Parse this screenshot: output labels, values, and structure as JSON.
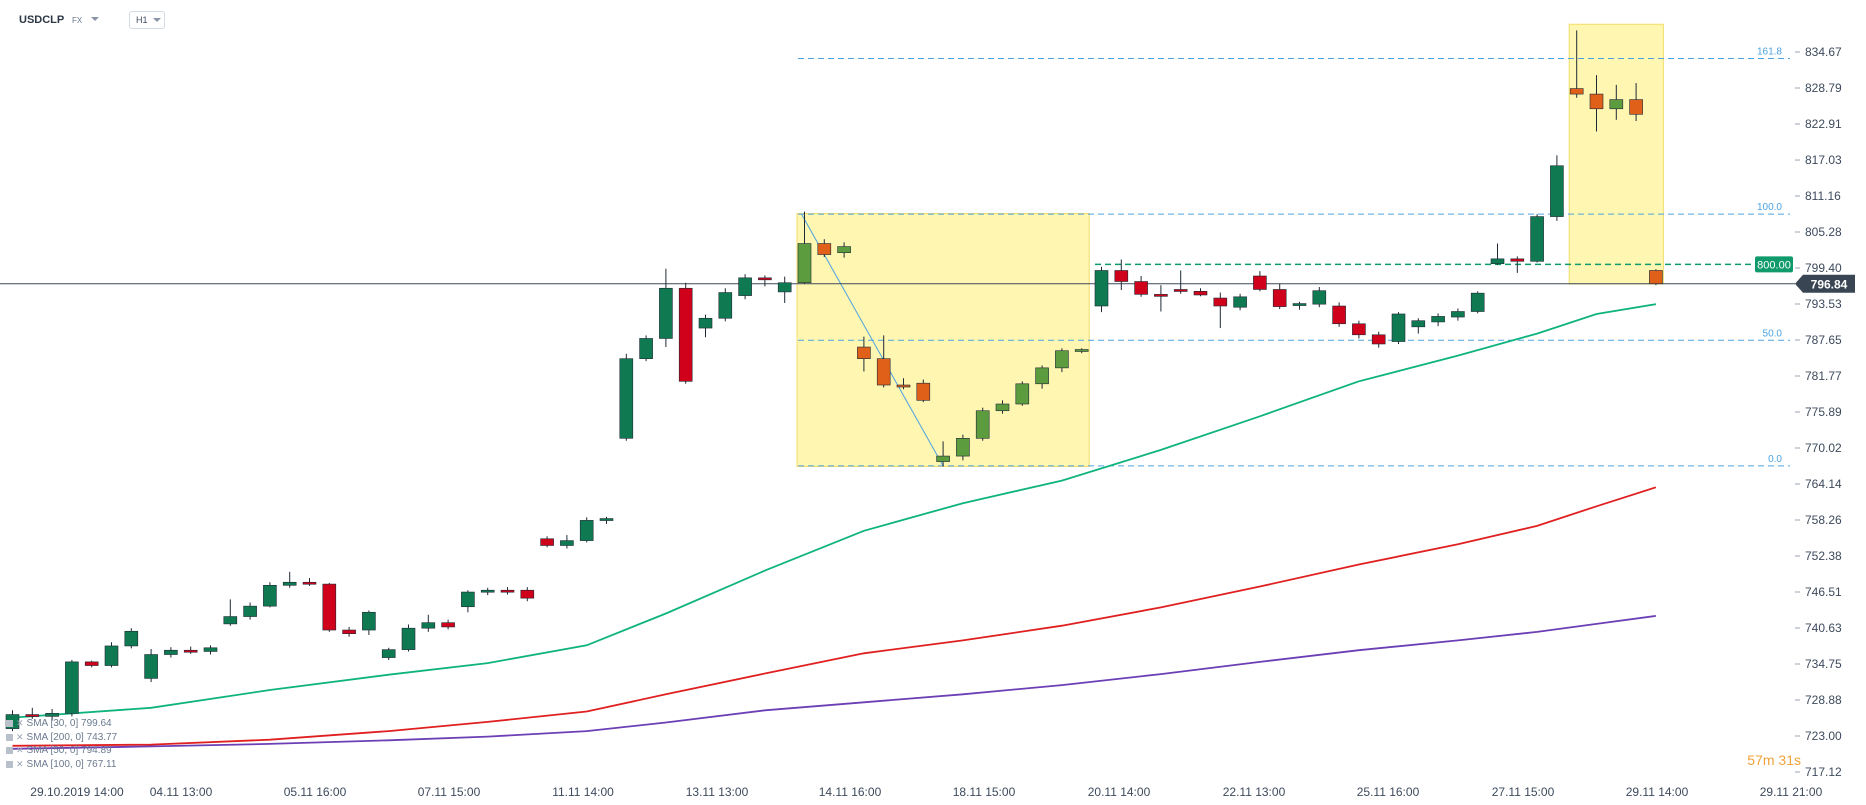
{
  "header": {
    "symbol": "USDCLP",
    "market": "FX",
    "timeframe": "H1"
  },
  "legend": [
    {
      "label": "SMA [30, 0] 799.64",
      "color": "#0fb37e"
    },
    {
      "label": "SMA [200, 0] 743.77",
      "color": "#6c3fb5"
    },
    {
      "label": "SMA [50, 0] 794.89",
      "color": "#0fb37e"
    },
    {
      "label": "SMA [100, 0] 767.11",
      "color": "#e02020"
    }
  ],
  "timer": "57m 31s",
  "colors": {
    "up": "#0f7a52",
    "down": "#d0021b",
    "fib_up": "#5d9c3e",
    "fib_down": "#e0601a",
    "sma_green": "#0fb37e",
    "sma_red": "#e02020",
    "sma_purple": "#6c3fb5",
    "fib_line": "#4da3e0",
    "highlight": "#fff5a8"
  },
  "chart_data": {
    "type": "candlestick",
    "symbol": "USDCLP",
    "y_range": [
      714.5,
      839.2
    ],
    "y_ticks": [
      834.67,
      828.79,
      822.91,
      817.03,
      811.16,
      805.28,
      799.4,
      793.53,
      787.65,
      781.77,
      775.89,
      770.02,
      764.14,
      758.26,
      752.38,
      746.51,
      740.63,
      734.75,
      728.88,
      723.0,
      717.12
    ],
    "x_ticks": [
      "29.10.2019  14:00",
      "04.11  13:00",
      "05.11  16:00",
      "07.11  15:00",
      "11.11  14:00",
      "13.11  13:00",
      "14.11  16:00",
      "18.11  15:00",
      "20.11  14:00",
      "22.11  13:00",
      "25.11  16:00",
      "27.11  15:00",
      "29.11  14:00",
      "29.11  21:00"
    ],
    "current_price": "796.84",
    "level_label": "800.00",
    "fib_levels": [
      {
        "label": "161.8",
        "value": 833.6
      },
      {
        "label": "100.0",
        "value": 808.2
      },
      {
        "label": "50.0",
        "value": 787.6
      },
      {
        "label": "0.0",
        "value": 767.1
      }
    ],
    "candles": [
      {
        "i": 0,
        "o": 724.2,
        "h": 727.2,
        "l": 723.8,
        "c": 726.5
      },
      {
        "i": 1,
        "o": 726.5,
        "h": 727.6,
        "l": 725.8,
        "c": 726.2
      },
      {
        "i": 2,
        "o": 726.2,
        "h": 727.4,
        "l": 725.5,
        "c": 726.7
      },
      {
        "i": 3,
        "o": 726.7,
        "h": 735.4,
        "l": 726.2,
        "c": 735.1
      },
      {
        "i": 4,
        "o": 735.1,
        "h": 735.3,
        "l": 734.2,
        "c": 734.5
      },
      {
        "i": 5,
        "o": 734.5,
        "h": 738.3,
        "l": 734.2,
        "c": 737.7
      },
      {
        "i": 6,
        "o": 737.7,
        "h": 740.6,
        "l": 737.3,
        "c": 740.1
      },
      {
        "i": 7,
        "o": 732.4,
        "h": 737.2,
        "l": 731.8,
        "c": 736.3
      },
      {
        "i": 8,
        "o": 736.3,
        "h": 737.5,
        "l": 735.8,
        "c": 737.0
      },
      {
        "i": 9,
        "o": 737.0,
        "h": 737.6,
        "l": 736.4,
        "c": 736.8
      },
      {
        "i": 10,
        "o": 736.8,
        "h": 737.8,
        "l": 736.3,
        "c": 737.4
      },
      {
        "i": 11,
        "o": 741.3,
        "h": 745.3,
        "l": 741.0,
        "c": 742.5
      },
      {
        "i": 12,
        "o": 742.5,
        "h": 744.8,
        "l": 742.0,
        "c": 744.2
      },
      {
        "i": 13,
        "o": 744.2,
        "h": 748.1,
        "l": 744.0,
        "c": 747.6
      },
      {
        "i": 14,
        "o": 747.6,
        "h": 749.8,
        "l": 747.2,
        "c": 748.1
      },
      {
        "i": 15,
        "o": 748.1,
        "h": 748.8,
        "l": 747.5,
        "c": 747.8
      },
      {
        "i": 16,
        "o": 747.8,
        "h": 748.0,
        "l": 740.0,
        "c": 740.3
      },
      {
        "i": 17,
        "o": 740.3,
        "h": 740.8,
        "l": 739.2,
        "c": 739.7
      },
      {
        "i": 18,
        "o": 740.3,
        "h": 743.5,
        "l": 739.5,
        "c": 743.2
      },
      {
        "i": 19,
        "o": 735.8,
        "h": 737.4,
        "l": 735.4,
        "c": 737.1
      },
      {
        "i": 20,
        "o": 737.1,
        "h": 741.2,
        "l": 736.8,
        "c": 740.6
      },
      {
        "i": 21,
        "o": 740.6,
        "h": 742.8,
        "l": 740.0,
        "c": 741.5
      },
      {
        "i": 22,
        "o": 741.5,
        "h": 742.0,
        "l": 740.4,
        "c": 740.8
      },
      {
        "i": 23,
        "o": 744.1,
        "h": 746.8,
        "l": 743.2,
        "c": 746.5
      },
      {
        "i": 24,
        "o": 746.5,
        "h": 747.2,
        "l": 746.0,
        "c": 746.8
      },
      {
        "i": 25,
        "o": 746.8,
        "h": 747.3,
        "l": 746.1,
        "c": 746.7
      },
      {
        "i": 26,
        "o": 746.8,
        "h": 747.3,
        "l": 745.0,
        "c": 745.5
      },
      {
        "i": 27,
        "o": 755.2,
        "h": 755.6,
        "l": 753.8,
        "c": 754.1
      },
      {
        "i": 28,
        "o": 754.1,
        "h": 755.8,
        "l": 753.6,
        "c": 754.9
      },
      {
        "i": 29,
        "o": 754.9,
        "h": 758.7,
        "l": 754.6,
        "c": 758.2
      },
      {
        "i": 30,
        "o": 758.2,
        "h": 758.8,
        "l": 757.6,
        "c": 758.5
      },
      {
        "i": 31,
        "o": 771.6,
        "h": 785.4,
        "l": 771.2,
        "c": 784.6
      },
      {
        "i": 32,
        "o": 784.6,
        "h": 788.4,
        "l": 784.2,
        "c": 787.9
      },
      {
        "i": 33,
        "o": 787.9,
        "h": 799.3,
        "l": 786.5,
        "c": 796.1
      },
      {
        "i": 34,
        "o": 796.1,
        "h": 797.0,
        "l": 780.5,
        "c": 780.9
      },
      {
        "i": 35,
        "o": 789.6,
        "h": 791.8,
        "l": 788.1,
        "c": 791.2
      },
      {
        "i": 36,
        "o": 791.2,
        "h": 796.1,
        "l": 790.7,
        "c": 795.4
      },
      {
        "i": 37,
        "o": 794.9,
        "h": 798.4,
        "l": 794.3,
        "c": 797.8
      },
      {
        "i": 38,
        "o": 797.8,
        "h": 798.2,
        "l": 796.4,
        "c": 797.6
      },
      {
        "i": 39,
        "o": 795.5,
        "h": 798.0,
        "l": 793.7,
        "c": 797.0
      },
      {
        "i": 40,
        "o": 797.0,
        "h": 808.6,
        "l": 796.8,
        "c": 803.4
      },
      {
        "i": 41,
        "o": 803.4,
        "h": 804.1,
        "l": 801.2,
        "c": 801.6
      },
      {
        "i": 42,
        "o": 801.9,
        "h": 803.6,
        "l": 801.1,
        "c": 802.9
      },
      {
        "i": 43,
        "o": 786.5,
        "h": 788.2,
        "l": 782.5,
        "c": 784.6
      },
      {
        "i": 44,
        "o": 784.6,
        "h": 788.4,
        "l": 779.9,
        "c": 780.3
      },
      {
        "i": 45,
        "o": 780.3,
        "h": 781.4,
        "l": 779.6,
        "c": 780.0
      },
      {
        "i": 46,
        "o": 780.6,
        "h": 781.2,
        "l": 777.5,
        "c": 777.8
      },
      {
        "i": 47,
        "o": 767.8,
        "h": 771.1,
        "l": 767.0,
        "c": 768.7
      },
      {
        "i": 48,
        "o": 768.7,
        "h": 772.2,
        "l": 768.0,
        "c": 771.6
      },
      {
        "i": 49,
        "o": 771.6,
        "h": 776.6,
        "l": 771.2,
        "c": 776.1
      },
      {
        "i": 50,
        "o": 776.1,
        "h": 777.8,
        "l": 775.6,
        "c": 777.2
      },
      {
        "i": 51,
        "o": 777.2,
        "h": 780.9,
        "l": 776.9,
        "c": 780.5
      },
      {
        "i": 52,
        "o": 780.5,
        "h": 783.5,
        "l": 779.7,
        "c": 783.1
      },
      {
        "i": 53,
        "o": 783.1,
        "h": 786.3,
        "l": 782.4,
        "c": 785.9
      },
      {
        "i": 54,
        "o": 785.9,
        "h": 786.3,
        "l": 785.5,
        "c": 786.1
      },
      {
        "i": 55,
        "o": 793.2,
        "h": 799.6,
        "l": 792.2,
        "c": 799.0
      },
      {
        "i": 56,
        "o": 799.0,
        "h": 800.8,
        "l": 795.8,
        "c": 797.2
      },
      {
        "i": 57,
        "o": 797.2,
        "h": 798.1,
        "l": 794.7,
        "c": 795.1
      },
      {
        "i": 58,
        "o": 795.1,
        "h": 796.6,
        "l": 792.3,
        "c": 794.8
      },
      {
        "i": 59,
        "o": 795.9,
        "h": 799.0,
        "l": 795.2,
        "c": 795.6
      },
      {
        "i": 60,
        "o": 795.6,
        "h": 796.1,
        "l": 794.8,
        "c": 795.0
      },
      {
        "i": 61,
        "o": 794.5,
        "h": 795.4,
        "l": 789.6,
        "c": 793.2
      },
      {
        "i": 62,
        "o": 793.0,
        "h": 795.2,
        "l": 792.5,
        "c": 794.7
      },
      {
        "i": 63,
        "o": 798.1,
        "h": 798.9,
        "l": 795.6,
        "c": 795.9
      },
      {
        "i": 64,
        "o": 795.9,
        "h": 796.8,
        "l": 792.7,
        "c": 793.1
      },
      {
        "i": 65,
        "o": 793.3,
        "h": 793.9,
        "l": 792.6,
        "c": 793.6
      },
      {
        "i": 66,
        "o": 793.5,
        "h": 796.3,
        "l": 793.0,
        "c": 795.7
      },
      {
        "i": 67,
        "o": 793.2,
        "h": 793.8,
        "l": 789.8,
        "c": 790.3
      },
      {
        "i": 68,
        "o": 790.3,
        "h": 790.8,
        "l": 787.9,
        "c": 788.5
      },
      {
        "i": 69,
        "o": 788.5,
        "h": 789.0,
        "l": 786.4,
        "c": 787.0
      },
      {
        "i": 70,
        "o": 787.4,
        "h": 792.2,
        "l": 787.0,
        "c": 791.9
      },
      {
        "i": 71,
        "o": 789.8,
        "h": 791.2,
        "l": 788.7,
        "c": 790.8
      },
      {
        "i": 72,
        "o": 790.6,
        "h": 792.0,
        "l": 789.9,
        "c": 791.5
      },
      {
        "i": 73,
        "o": 791.4,
        "h": 792.8,
        "l": 790.8,
        "c": 792.3
      },
      {
        "i": 74,
        "o": 792.3,
        "h": 795.6,
        "l": 792.0,
        "c": 795.3
      },
      {
        "i": 75,
        "o": 800.1,
        "h": 803.4,
        "l": 799.9,
        "c": 800.9
      },
      {
        "i": 76,
        "o": 800.9,
        "h": 801.3,
        "l": 798.6,
        "c": 800.5
      },
      {
        "i": 77,
        "o": 800.5,
        "h": 808.2,
        "l": 800.3,
        "c": 807.8
      },
      {
        "i": 78,
        "o": 807.8,
        "h": 817.8,
        "l": 807.1,
        "c": 816.1
      },
      {
        "i": 79,
        "o": 828.7,
        "h": 838.2,
        "l": 827.2,
        "c": 827.8
      },
      {
        "i": 80,
        "o": 827.8,
        "h": 830.9,
        "l": 821.7,
        "c": 825.4
      },
      {
        "i": 81,
        "o": 825.4,
        "h": 829.3,
        "l": 823.6,
        "c": 826.9
      },
      {
        "i": 82,
        "o": 826.9,
        "h": 829.6,
        "l": 823.4,
        "c": 824.5
      },
      {
        "i": 83,
        "o": 799.0,
        "h": 799.2,
        "l": 796.6,
        "c": 796.84
      }
    ],
    "sma_series": [
      {
        "color": "#0fb37e",
        "points": [
          [
            0,
            726.0
          ],
          [
            7,
            727.6
          ],
          [
            13,
            730.5
          ],
          [
            19,
            733.0
          ],
          [
            24,
            734.9
          ],
          [
            29,
            737.8
          ],
          [
            33,
            743.0
          ],
          [
            38,
            750.0
          ],
          [
            43,
            756.5
          ],
          [
            48,
            761.0
          ],
          [
            53,
            764.7
          ],
          [
            58,
            769.7
          ],
          [
            63,
            775.2
          ],
          [
            68,
            780.9
          ],
          [
            73,
            785.1
          ],
          [
            77,
            788.7
          ],
          [
            80,
            791.9
          ],
          [
            83,
            793.5
          ]
        ]
      },
      {
        "color": "#e02020",
        "points": [
          [
            0,
            721.4
          ],
          [
            7,
            721.6
          ],
          [
            13,
            722.4
          ],
          [
            19,
            723.8
          ],
          [
            24,
            725.3
          ],
          [
            29,
            727.0
          ],
          [
            33,
            729.8
          ],
          [
            38,
            733.2
          ],
          [
            43,
            736.5
          ],
          [
            48,
            738.6
          ],
          [
            53,
            741.0
          ],
          [
            58,
            744.0
          ],
          [
            63,
            747.4
          ],
          [
            68,
            751.0
          ],
          [
            73,
            754.3
          ],
          [
            77,
            757.3
          ],
          [
            80,
            760.5
          ],
          [
            83,
            763.6
          ]
        ]
      },
      {
        "color": "#6c3fb5",
        "points": [
          [
            0,
            720.9
          ],
          [
            7,
            721.3
          ],
          [
            13,
            721.7
          ],
          [
            19,
            722.3
          ],
          [
            24,
            722.9
          ],
          [
            29,
            723.8
          ],
          [
            33,
            725.2
          ],
          [
            38,
            727.2
          ],
          [
            43,
            728.5
          ],
          [
            48,
            729.8
          ],
          [
            53,
            731.3
          ],
          [
            58,
            733.1
          ],
          [
            63,
            735.1
          ],
          [
            68,
            737.0
          ],
          [
            73,
            738.6
          ],
          [
            77,
            740.0
          ],
          [
            80,
            741.3
          ],
          [
            83,
            742.6
          ]
        ]
      }
    ],
    "highlight_boxes": [
      {
        "from_i": 40,
        "to_i": 54,
        "high": 808.3,
        "low": 767.0
      },
      {
        "from_i": 79,
        "to_i": 83,
        "high": 839.2,
        "low": 796.8
      }
    ],
    "fib_swing": {
      "from_i": 40,
      "from_v": 808.2,
      "to_i": 47,
      "to_v": 767.1
    }
  }
}
